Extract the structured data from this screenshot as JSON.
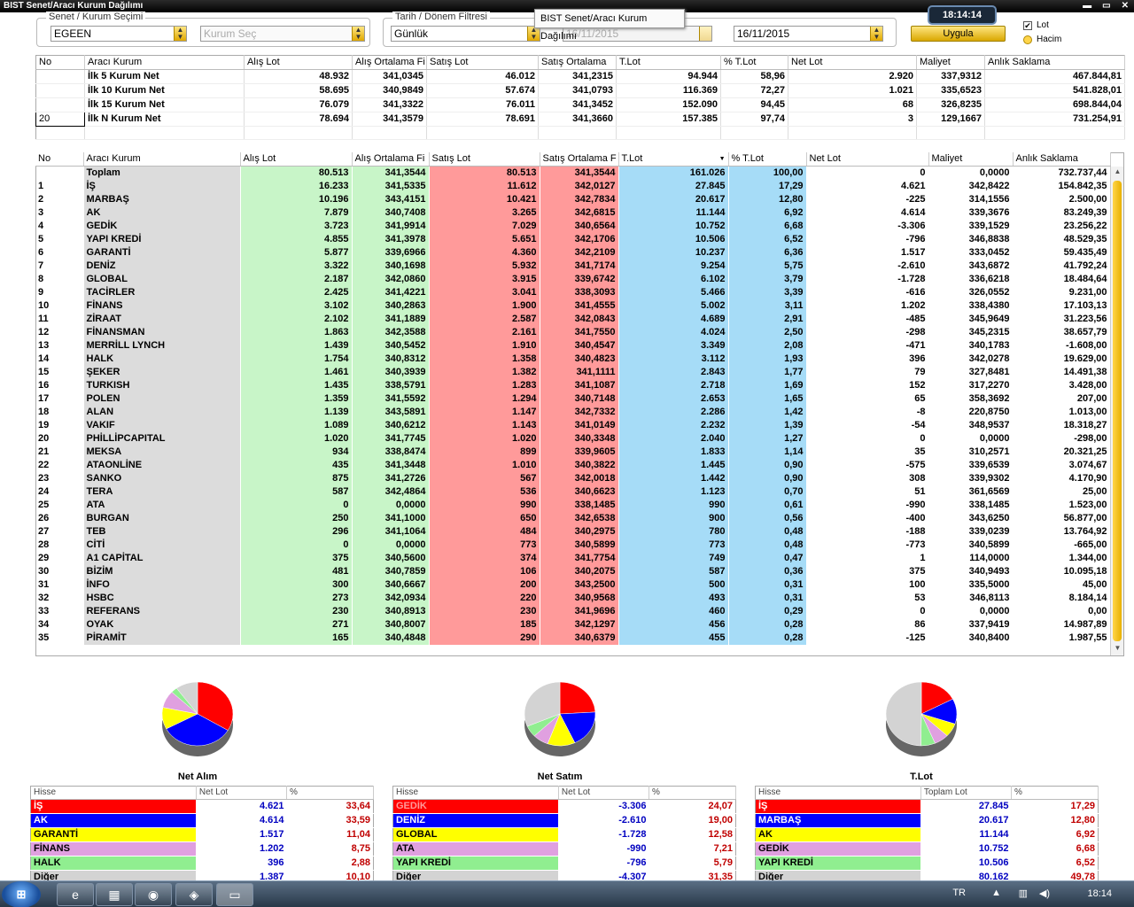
{
  "window": {
    "title": "BIST Senet/Aracı Kurum Dağılımı"
  },
  "tooltip": "BIST Senet/Aracı Kurum Dağılımı",
  "clock": "18:14:14",
  "filters": {
    "senet_group_label": "Senet / Kurum Seçimi",
    "senet_value": "EGEEN",
    "kurum_placeholder": "Kurum Seç",
    "date_group_label": "Tarih / Dönem Filtresi",
    "period_value": "Günlük",
    "date_start": "16/11/2015",
    "date_end": "16/11/2015",
    "apply_label": "Uygula",
    "radio_lot": "Lot",
    "radio_hacim": "Hacim"
  },
  "summary": {
    "headers": [
      "No",
      "Aracı Kurum",
      "Alış Lot",
      "Alış Ortalama Fi",
      "Satış Lot",
      "Satış Ortalama",
      "T.Lot",
      "% T.Lot",
      "Net Lot",
      "Maliyet",
      "Anlık Saklama"
    ],
    "rows": [
      {
        "no": "",
        "name": "İlk 5 Kurum Net",
        "buy": "48.932",
        "buyavg": "341,0345",
        "sell": "46.012",
        "sellavg": "341,2315",
        "tlot": "94.944",
        "pct": "58,96",
        "net": "2.920",
        "cost": "337,9312",
        "hold": "467.844,81"
      },
      {
        "no": "",
        "name": "İlk 10 Kurum Net",
        "buy": "58.695",
        "buyavg": "340,9849",
        "sell": "57.674",
        "sellavg": "341,0793",
        "tlot": "116.369",
        "pct": "72,27",
        "net": "1.021",
        "cost": "335,6523",
        "hold": "541.828,01"
      },
      {
        "no": "",
        "name": "İlk 15 Kurum Net",
        "buy": "76.079",
        "buyavg": "341,3322",
        "sell": "76.011",
        "sellavg": "341,3452",
        "tlot": "152.090",
        "pct": "94,45",
        "net": "68",
        "cost": "326,8235",
        "hold": "698.844,04"
      },
      {
        "no": "20",
        "name": "İlk N Kurum Net",
        "buy": "78.694",
        "buyavg": "341,3579",
        "sell": "78.691",
        "sellavg": "341,3660",
        "tlot": "157.385",
        "pct": "97,74",
        "net": "3",
        "cost": "129,1667",
        "hold": "731.254,91"
      }
    ]
  },
  "main": {
    "headers": [
      "No",
      "Aracı Kurum",
      "Alış Lot",
      "Alış Ortalama Fi",
      "Satış Lot",
      "Satış Ortalama F",
      "T.Lot",
      "% T.Lot",
      "Net Lot",
      "Maliyet",
      "Anlık Saklama"
    ],
    "rows": [
      [
        "",
        "Toplam",
        "80.513",
        "341,3544",
        "80.513",
        "341,3544",
        "161.026",
        "100,00",
        "0",
        "0,0000",
        "732.737,44"
      ],
      [
        "1",
        "İŞ",
        "16.233",
        "341,5335",
        "11.612",
        "342,0127",
        "27.845",
        "17,29",
        "4.621",
        "342,8422",
        "154.842,35"
      ],
      [
        "2",
        "MARBAŞ",
        "10.196",
        "343,4151",
        "10.421",
        "342,7834",
        "20.617",
        "12,80",
        "-225",
        "314,1556",
        "2.500,00"
      ],
      [
        "3",
        "AK",
        "7.879",
        "340,7408",
        "3.265",
        "342,6815",
        "11.144",
        "6,92",
        "4.614",
        "339,3676",
        "83.249,39"
      ],
      [
        "4",
        "GEDİK",
        "3.723",
        "341,9914",
        "7.029",
        "340,6564",
        "10.752",
        "6,68",
        "-3.306",
        "339,1529",
        "23.256,22"
      ],
      [
        "5",
        "YAPI KREDİ",
        "4.855",
        "341,3978",
        "5.651",
        "342,1706",
        "10.506",
        "6,52",
        "-796",
        "346,8838",
        "48.529,35"
      ],
      [
        "6",
        "GARANTİ",
        "5.877",
        "339,6966",
        "4.360",
        "342,2109",
        "10.237",
        "6,36",
        "1.517",
        "333,0452",
        "59.435,49"
      ],
      [
        "7",
        "DENİZ",
        "3.322",
        "340,1698",
        "5.932",
        "341,7174",
        "9.254",
        "5,75",
        "-2.610",
        "343,6872",
        "41.792,24"
      ],
      [
        "8",
        "GLOBAL",
        "2.187",
        "342,0860",
        "3.915",
        "339,6742",
        "6.102",
        "3,79",
        "-1.728",
        "336,6218",
        "18.484,64"
      ],
      [
        "9",
        "TACİRLER",
        "2.425",
        "341,4221",
        "3.041",
        "338,3093",
        "5.466",
        "3,39",
        "-616",
        "326,0552",
        "9.231,00"
      ],
      [
        "10",
        "FİNANS",
        "3.102",
        "340,2863",
        "1.900",
        "341,4555",
        "5.002",
        "3,11",
        "1.202",
        "338,4380",
        "17.103,13"
      ],
      [
        "11",
        "ZİRAAT",
        "2.102",
        "341,1889",
        "2.587",
        "342,0843",
        "4.689",
        "2,91",
        "-485",
        "345,9649",
        "31.223,56"
      ],
      [
        "12",
        "FİNANSMAN",
        "1.863",
        "342,3588",
        "2.161",
        "341,7550",
        "4.024",
        "2,50",
        "-298",
        "345,2315",
        "38.657,79"
      ],
      [
        "13",
        "MERRİLL LYNCH",
        "1.439",
        "340,5452",
        "1.910",
        "340,4547",
        "3.349",
        "2,08",
        "-471",
        "340,1783",
        "-1.608,00"
      ],
      [
        "14",
        "HALK",
        "1.754",
        "340,8312",
        "1.358",
        "340,4823",
        "3.112",
        "1,93",
        "396",
        "342,0278",
        "19.629,00"
      ],
      [
        "15",
        "ŞEKER",
        "1.461",
        "340,3939",
        "1.382",
        "341,1111",
        "2.843",
        "1,77",
        "79",
        "327,8481",
        "14.491,38"
      ],
      [
        "16",
        "TURKISH",
        "1.435",
        "338,5791",
        "1.283",
        "341,1087",
        "2.718",
        "1,69",
        "152",
        "317,2270",
        "3.428,00"
      ],
      [
        "17",
        "POLEN",
        "1.359",
        "341,5592",
        "1.294",
        "340,7148",
        "2.653",
        "1,65",
        "65",
        "358,3692",
        "207,00"
      ],
      [
        "18",
        "ALAN",
        "1.139",
        "343,5891",
        "1.147",
        "342,7332",
        "2.286",
        "1,42",
        "-8",
        "220,8750",
        "1.013,00"
      ],
      [
        "19",
        "VAKIF",
        "1.089",
        "340,6212",
        "1.143",
        "341,0149",
        "2.232",
        "1,39",
        "-54",
        "348,9537",
        "18.318,27"
      ],
      [
        "20",
        "PHİLLİPCAPITAL",
        "1.020",
        "341,7745",
        "1.020",
        "340,3348",
        "2.040",
        "1,27",
        "0",
        "0,0000",
        "-298,00"
      ],
      [
        "21",
        "MEKSA",
        "934",
        "338,8474",
        "899",
        "339,9605",
        "1.833",
        "1,14",
        "35",
        "310,2571",
        "20.321,25"
      ],
      [
        "22",
        "ATAONLİNE",
        "435",
        "341,3448",
        "1.010",
        "340,3822",
        "1.445",
        "0,90",
        "-575",
        "339,6539",
        "3.074,67"
      ],
      [
        "23",
        "SANKO",
        "875",
        "341,2726",
        "567",
        "342,0018",
        "1.442",
        "0,90",
        "308",
        "339,9302",
        "4.170,90"
      ],
      [
        "24",
        "TERA",
        "587",
        "342,4864",
        "536",
        "340,6623",
        "1.123",
        "0,70",
        "51",
        "361,6569",
        "25,00"
      ],
      [
        "25",
        "ATA",
        "0",
        "0,0000",
        "990",
        "338,1485",
        "990",
        "0,61",
        "-990",
        "338,1485",
        "1.523,00"
      ],
      [
        "26",
        "BURGAN",
        "250",
        "341,1000",
        "650",
        "342,6538",
        "900",
        "0,56",
        "-400",
        "343,6250",
        "56.877,00"
      ],
      [
        "27",
        "TEB",
        "296",
        "341,1064",
        "484",
        "340,2975",
        "780",
        "0,48",
        "-188",
        "339,0239",
        "13.764,92"
      ],
      [
        "28",
        "CİTİ",
        "0",
        "0,0000",
        "773",
        "340,5899",
        "773",
        "0,48",
        "-773",
        "340,5899",
        "-665,00"
      ],
      [
        "29",
        "A1 CAPİTAL",
        "375",
        "340,5600",
        "374",
        "341,7754",
        "749",
        "0,47",
        "1",
        "114,0000",
        "1.344,00"
      ],
      [
        "30",
        "BİZİM",
        "481",
        "340,7859",
        "106",
        "340,2075",
        "587",
        "0,36",
        "375",
        "340,9493",
        "10.095,18"
      ],
      [
        "31",
        "İNFO",
        "300",
        "340,6667",
        "200",
        "343,2500",
        "500",
        "0,31",
        "100",
        "335,5000",
        "45,00"
      ],
      [
        "32",
        "HSBC",
        "273",
        "342,0934",
        "220",
        "340,9568",
        "493",
        "0,31",
        "53",
        "346,8113",
        "8.184,14"
      ],
      [
        "33",
        "REFERANS",
        "230",
        "340,8913",
        "230",
        "341,9696",
        "460",
        "0,29",
        "0",
        "0,0000",
        "0,00"
      ],
      [
        "34",
        "OYAK",
        "271",
        "340,8007",
        "185",
        "342,1297",
        "456",
        "0,28",
        "86",
        "337,9419",
        "14.987,89"
      ],
      [
        "35",
        "PİRAMİT",
        "165",
        "340,4848",
        "290",
        "340,6379",
        "455",
        "0,28",
        "-125",
        "340,8400",
        "1.987,55"
      ]
    ]
  },
  "pies": [
    {
      "title": "Net Alım",
      "h1": "Hisse",
      "h2": "Net Lot",
      "h3": "%",
      "rows": [
        {
          "name": "İŞ",
          "val": "4.621",
          "pct": "33,64",
          "color": "#ff0000"
        },
        {
          "name": "AK",
          "val": "4.614",
          "pct": "33,59",
          "color": "#0000ff"
        },
        {
          "name": "GARANTİ",
          "val": "1.517",
          "pct": "11,04",
          "color": "#ffff00"
        },
        {
          "name": "FİNANS",
          "val": "1.202",
          "pct": "8,75",
          "color": "#e0a0e0"
        },
        {
          "name": "HALK",
          "val": "396",
          "pct": "2,88",
          "color": "#90ee90"
        },
        {
          "name": "Diğer",
          "val": "1.387",
          "pct": "10,10",
          "color": "#d3d3d3"
        }
      ]
    },
    {
      "title": "Net Satım",
      "h1": "Hisse",
      "h2": "Net Lot",
      "h3": "%",
      "rows": [
        {
          "name": "GEDİK",
          "val": "-3.306",
          "pct": "24,07",
          "color": "#ff0000"
        },
        {
          "name": "DENİZ",
          "val": "-2.610",
          "pct": "19,00",
          "color": "#0000ff"
        },
        {
          "name": "GLOBAL",
          "val": "-1.728",
          "pct": "12,58",
          "color": "#ffff00"
        },
        {
          "name": "ATA",
          "val": "-990",
          "pct": "7,21",
          "color": "#e0a0e0"
        },
        {
          "name": "YAPI KREDİ",
          "val": "-796",
          "pct": "5,79",
          "color": "#90ee90"
        },
        {
          "name": "Diğer",
          "val": "-4.307",
          "pct": "31,35",
          "color": "#d3d3d3"
        }
      ]
    },
    {
      "title": "T.Lot",
      "h1": "Hisse",
      "h2": "Toplam Lot",
      "h3": "%",
      "rows": [
        {
          "name": "İŞ",
          "val": "27.845",
          "pct": "17,29",
          "color": "#ff0000"
        },
        {
          "name": "MARBAŞ",
          "val": "20.617",
          "pct": "12,80",
          "color": "#0000ff"
        },
        {
          "name": "AK",
          "val": "11.144",
          "pct": "6,92",
          "color": "#ffff00"
        },
        {
          "name": "GEDİK",
          "val": "10.752",
          "pct": "6,68",
          "color": "#e0a0e0"
        },
        {
          "name": "YAPI KREDİ",
          "val": "10.506",
          "pct": "6,52",
          "color": "#90ee90"
        },
        {
          "name": "Diğer",
          "val": "80.162",
          "pct": "49,78",
          "color": "#d3d3d3"
        }
      ]
    }
  ],
  "taskbar": {
    "lang": "TR",
    "time": "18:14"
  }
}
